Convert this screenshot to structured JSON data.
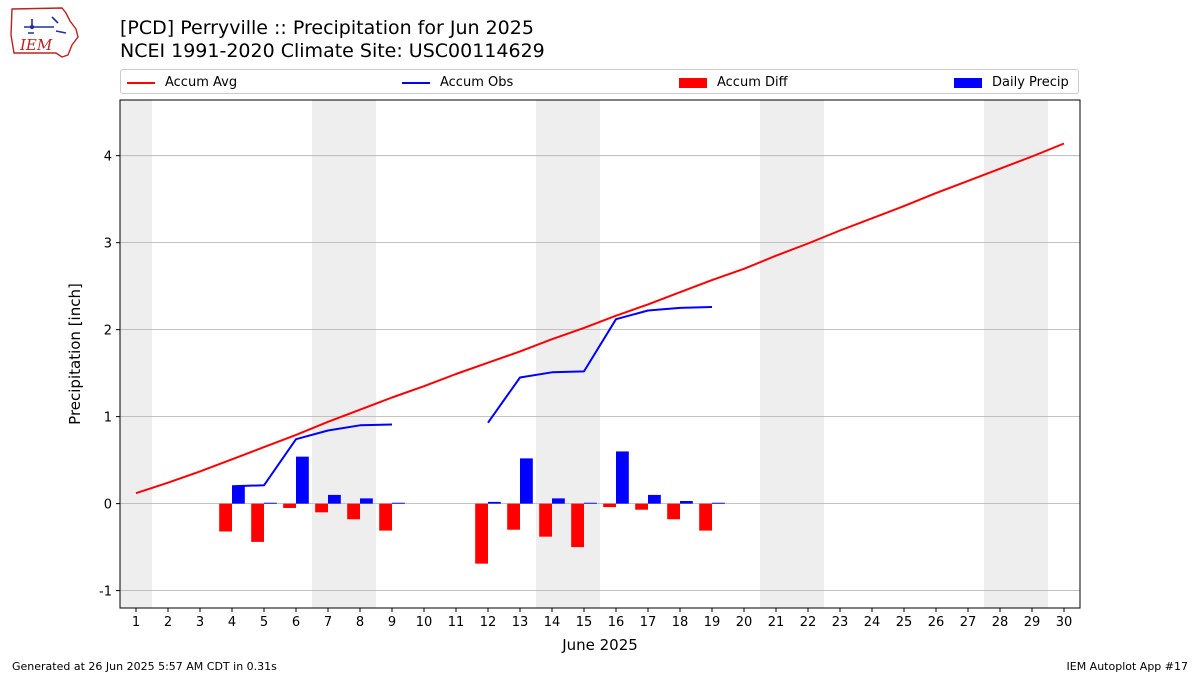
{
  "header": {
    "title_line1": "[PCD] Perryville :: Precipitation for Jun 2025",
    "title_line2": "NCEI 1991-2020 Climate Site: USC00114629"
  },
  "logo": {
    "text": "IEM",
    "icon": "iem-iowa-map-logo"
  },
  "legend": {
    "accum_avg": "Accum Avg",
    "accum_obs": "Accum Obs",
    "accum_diff": "Accum Diff",
    "daily_precip": "Daily Precip"
  },
  "footer": {
    "left": "Generated at 26 Jun 2025 5:57 AM CDT in 0.31s",
    "right": "IEM Autoplot App #17"
  },
  "colors": {
    "accum_avg": "#ff0000",
    "accum_obs": "#0000ff",
    "accum_diff": "#ff0000",
    "daily_precip": "#0000ff",
    "weekend_shade": "#eeeeee",
    "grid": "#b0b0b0"
  },
  "chart_data": {
    "type": "bar",
    "xlabel": "June 2025",
    "ylabel": "Precipitation [inch]",
    "xlim": [
      0.5,
      30.5
    ],
    "ylim": [
      -1.2,
      4.64
    ],
    "yticks": [
      -1,
      0,
      1,
      2,
      3,
      4
    ],
    "grid": "horizontal",
    "legend_position": "top",
    "weekend_days": [
      1,
      7,
      8,
      14,
      15,
      21,
      22,
      28,
      29
    ],
    "days": [
      1,
      2,
      3,
      4,
      5,
      6,
      7,
      8,
      9,
      10,
      11,
      12,
      13,
      14,
      15,
      16,
      17,
      18,
      19,
      20,
      21,
      22,
      23,
      24,
      25,
      26,
      27,
      28,
      29,
      30
    ],
    "series": [
      {
        "name": "Accum Avg",
        "kind": "line",
        "values": [
          0.12,
          0.24,
          0.37,
          0.51,
          0.65,
          0.79,
          0.94,
          1.08,
          1.22,
          1.35,
          1.49,
          1.62,
          1.75,
          1.89,
          2.02,
          2.16,
          2.29,
          2.43,
          2.57,
          2.7,
          2.85,
          2.99,
          3.14,
          3.28,
          3.42,
          3.57,
          3.71,
          3.85,
          3.99,
          4.14
        ]
      },
      {
        "name": "Accum Obs",
        "kind": "line",
        "values": [
          null,
          null,
          null,
          0.2,
          0.21,
          0.74,
          0.84,
          0.9,
          0.91,
          null,
          null,
          0.93,
          1.45,
          1.51,
          1.52,
          2.12,
          2.22,
          2.25,
          2.26,
          null,
          null,
          null,
          null,
          null,
          null,
          null,
          null,
          null,
          null,
          null
        ]
      },
      {
        "name": "Accum Diff",
        "kind": "bar",
        "values": [
          null,
          null,
          null,
          -0.32,
          -0.44,
          -0.05,
          -0.1,
          -0.18,
          -0.31,
          null,
          null,
          -0.69,
          -0.3,
          -0.38,
          -0.5,
          -0.04,
          -0.07,
          -0.18,
          -0.31,
          null,
          null,
          null,
          null,
          null,
          null,
          null,
          null,
          null,
          null,
          null
        ]
      },
      {
        "name": "Daily Precip",
        "kind": "bar",
        "values": [
          null,
          null,
          null,
          0.2,
          0.01,
          0.54,
          0.1,
          0.06,
          0.01,
          null,
          null,
          0.02,
          0.52,
          0.06,
          0.01,
          0.6,
          0.1,
          0.03,
          0.01,
          null,
          null,
          null,
          null,
          null,
          null,
          null,
          null,
          null,
          null,
          null
        ]
      }
    ]
  }
}
